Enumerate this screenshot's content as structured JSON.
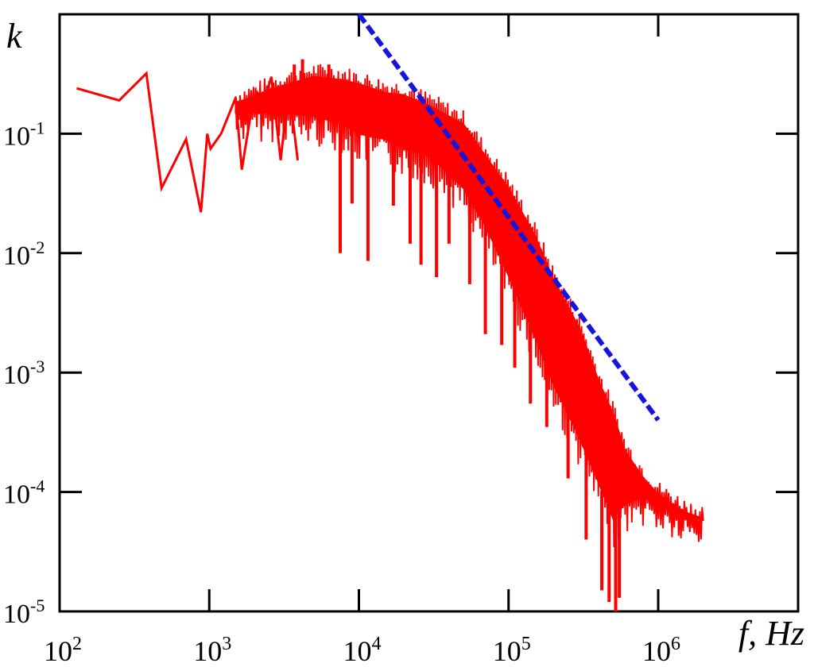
{
  "chart_data": {
    "type": "line",
    "title": "",
    "xlabel": "f, Hz",
    "ylabel": "k",
    "xscale": "log",
    "yscale": "log",
    "xlim": [
      100,
      2500000
    ],
    "ylim": [
      1e-05,
      1
    ],
    "grid": false,
    "x_ticks": [
      {
        "base": "10",
        "exp": "2",
        "value": 100
      },
      {
        "base": "10",
        "exp": "3",
        "value": 1000
      },
      {
        "base": "10",
        "exp": "4",
        "value": 10000
      },
      {
        "base": "10",
        "exp": "5",
        "value": 100000
      },
      {
        "base": "10",
        "exp": "6",
        "value": 1000000
      }
    ],
    "y_ticks": [
      {
        "base": "10",
        "exp": "-1",
        "value": 0.1
      },
      {
        "base": "10",
        "exp": "-2",
        "value": 0.01
      },
      {
        "base": "10",
        "exp": "-3",
        "value": 0.001
      },
      {
        "base": "10",
        "exp": "-4",
        "value": 0.0001
      },
      {
        "base": "10",
        "exp": "-5",
        "value": 1e-05
      }
    ],
    "series": [
      {
        "color": "#ff0000",
        "style": "solid",
        "band": {
          "x": [
            1500,
            3000,
            5000,
            8000,
            10000,
            15000,
            20000,
            30000,
            50000,
            70000,
            100000,
            150000,
            200000,
            300000,
            400000,
            500000,
            600000,
            800000,
            1000000,
            1500000,
            2000000
          ],
          "upper": [
            0.18,
            0.25,
            0.3,
            0.28,
            0.26,
            0.22,
            0.21,
            0.17,
            0.12,
            0.065,
            0.035,
            0.014,
            0.006,
            0.0023,
            0.00085,
            0.00045,
            0.00022,
            0.00013,
            9.5e-05,
            6.8e-05,
            6e-05
          ],
          "lower": [
            0.15,
            0.15,
            0.14,
            0.12,
            0.1,
            0.09,
            0.075,
            0.065,
            0.035,
            0.017,
            0.0065,
            0.002,
            0.0008,
            0.00028,
            0.00012,
            6e-05,
            8e-05,
            9e-05,
            8e-05,
            6e-05,
            6e-05
          ]
        },
        "line": {
          "x": [
            130,
            250,
            380,
            480,
            700,
            880,
            970,
            1020,
            1200,
            1500,
            1650,
            1900,
            2100,
            2300,
            2600,
            3000,
            3400,
            3900
          ],
          "y": [
            0.24,
            0.19,
            0.32,
            0.035,
            0.09,
            0.022,
            0.1,
            0.075,
            0.1,
            0.2,
            0.05,
            0.15,
            0.22,
            0.18,
            0.3,
            0.06,
            0.25,
            0.06
          ]
        },
        "spikes": [
          {
            "x": 3700,
            "y": 0.38
          },
          {
            "x": 4200,
            "y": 0.42
          },
          {
            "x": 6300,
            "y": 0.38
          },
          {
            "x": 7500,
            "y": 0.01
          },
          {
            "x": 9000,
            "y": 0.026
          },
          {
            "x": 11500,
            "y": 0.0086
          },
          {
            "x": 17000,
            "y": 0.025
          },
          {
            "x": 22000,
            "y": 0.012
          },
          {
            "x": 26000,
            "y": 0.008
          },
          {
            "x": 33000,
            "y": 0.0063
          },
          {
            "x": 40000,
            "y": 0.012
          },
          {
            "x": 55000,
            "y": 0.0055
          },
          {
            "x": 70000,
            "y": 0.0021
          },
          {
            "x": 90000,
            "y": 0.0017
          },
          {
            "x": 110000,
            "y": 0.0011
          },
          {
            "x": 140000,
            "y": 0.00055
          },
          {
            "x": 180000,
            "y": 0.00035
          },
          {
            "x": 250000,
            "y": 0.00013
          },
          {
            "x": 330000,
            "y": 4e-05
          },
          {
            "x": 420000,
            "y": 1.5e-05
          },
          {
            "x": 470000,
            "y": 1.2e-05
          },
          {
            "x": 520000,
            "y": 1e-05
          },
          {
            "x": 550000,
            "y": 1.3e-05
          }
        ]
      },
      {
        "color": "#1515dd",
        "style": "dashed",
        "x": [
          10000,
          1000000
        ],
        "y": [
          1.0,
          0.0004
        ]
      }
    ]
  }
}
